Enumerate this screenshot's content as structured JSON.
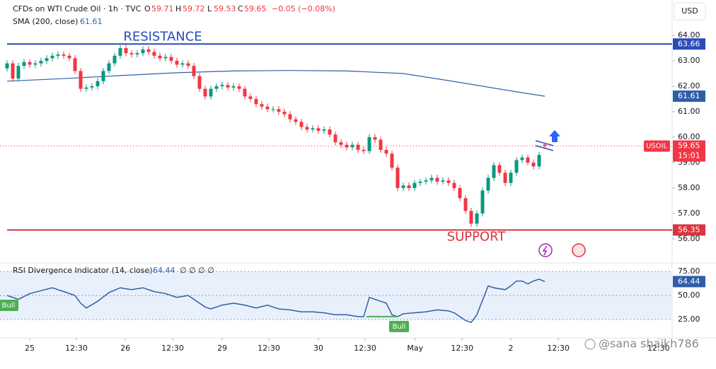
{
  "chart_data": {
    "type": "candlestick",
    "header": {
      "symbol": "CFDs on WTI Crude Oil · 1h · TVC",
      "o": "O",
      "h": "H",
      "l": "L",
      "c": "C",
      "change": "−0.05 (−0.08%)"
    },
    "currency": "USD",
    "up_color": "#089981",
    "down_color": "#f23645",
    "candles": [
      [
        62.7,
        63.02,
        62.58,
        62.9
      ],
      [
        62.9,
        63.02,
        62.18,
        62.3
      ],
      [
        62.3,
        62.92,
        62.18,
        62.8
      ],
      [
        62.8,
        63.07,
        62.68,
        62.95
      ],
      [
        62.95,
        63.07,
        62.73,
        62.85
      ],
      [
        62.85,
        63.02,
        62.73,
        62.9
      ],
      [
        62.9,
        63.12,
        62.78,
        63.0
      ],
      [
        63.0,
        63.22,
        62.88,
        63.1
      ],
      [
        63.1,
        63.32,
        62.98,
        63.2
      ],
      [
        63.2,
        63.37,
        63.08,
        63.25
      ],
      [
        63.25,
        63.37,
        63.08,
        63.2
      ],
      [
        63.2,
        63.32,
        62.98,
        63.1
      ],
      [
        63.1,
        63.22,
        62.48,
        62.6
      ],
      [
        62.6,
        62.72,
        61.78,
        61.9
      ],
      [
        61.9,
        62.07,
        61.78,
        61.95
      ],
      [
        61.95,
        62.12,
        61.83,
        62.0
      ],
      [
        62.0,
        62.32,
        61.88,
        62.2
      ],
      [
        62.2,
        62.72,
        62.08,
        62.6
      ],
      [
        62.6,
        63.02,
        62.48,
        62.9
      ],
      [
        62.9,
        63.32,
        62.78,
        63.2
      ],
      [
        63.2,
        63.62,
        63.08,
        63.5
      ],
      [
        63.5,
        63.62,
        63.18,
        63.3
      ],
      [
        63.3,
        63.42,
        63.13,
        63.25
      ],
      [
        63.25,
        63.42,
        63.13,
        63.3
      ],
      [
        63.3,
        63.57,
        63.18,
        63.45
      ],
      [
        63.45,
        63.57,
        63.23,
        63.35
      ],
      [
        63.35,
        63.47,
        63.08,
        63.2
      ],
      [
        63.2,
        63.32,
        62.98,
        63.1
      ],
      [
        63.1,
        63.27,
        62.98,
        63.15
      ],
      [
        63.15,
        63.27,
        62.88,
        63.0
      ],
      [
        63.0,
        63.12,
        62.73,
        62.85
      ],
      [
        62.85,
        63.02,
        62.73,
        62.9
      ],
      [
        62.9,
        63.02,
        62.68,
        62.8
      ],
      [
        62.8,
        62.92,
        62.28,
        62.4
      ],
      [
        62.4,
        62.52,
        61.78,
        61.9
      ],
      [
        61.9,
        62.02,
        61.48,
        61.6
      ],
      [
        61.6,
        62.02,
        61.48,
        61.9
      ],
      [
        61.9,
        62.12,
        61.78,
        62.0
      ],
      [
        62.0,
        62.17,
        61.88,
        62.05
      ],
      [
        62.05,
        62.17,
        61.83,
        61.95
      ],
      [
        61.95,
        62.12,
        61.83,
        62.0
      ],
      [
        62.0,
        62.12,
        61.78,
        61.9
      ],
      [
        61.9,
        62.02,
        61.48,
        61.6
      ],
      [
        61.6,
        61.72,
        61.38,
        61.5
      ],
      [
        61.5,
        61.62,
        61.18,
        61.3
      ],
      [
        61.3,
        61.42,
        61.08,
        61.2
      ],
      [
        61.2,
        61.32,
        60.98,
        61.1
      ],
      [
        61.1,
        61.22,
        60.98,
        61.1
      ],
      [
        61.1,
        61.22,
        60.88,
        61.0
      ],
      [
        61.0,
        61.12,
        60.78,
        60.9
      ],
      [
        60.9,
        61.02,
        60.58,
        60.7
      ],
      [
        60.7,
        60.82,
        60.48,
        60.6
      ],
      [
        60.6,
        60.72,
        60.28,
        60.4
      ],
      [
        60.4,
        60.52,
        60.18,
        60.3
      ],
      [
        60.3,
        60.47,
        60.18,
        60.35
      ],
      [
        60.35,
        60.47,
        60.13,
        60.25
      ],
      [
        60.25,
        60.42,
        60.13,
        60.3
      ],
      [
        60.3,
        60.42,
        59.98,
        60.1
      ],
      [
        60.1,
        60.22,
        59.68,
        59.8
      ],
      [
        59.8,
        59.92,
        59.58,
        59.7
      ],
      [
        59.7,
        59.82,
        59.48,
        59.6
      ],
      [
        59.6,
        59.82,
        59.48,
        59.7
      ],
      [
        59.7,
        59.82,
        59.38,
        59.5
      ],
      [
        59.5,
        59.62,
        59.33,
        59.45
      ],
      [
        59.45,
        60.12,
        59.33,
        60.0
      ],
      [
        60.0,
        60.12,
        59.78,
        59.9
      ],
      [
        59.9,
        60.02,
        59.38,
        59.5
      ],
      [
        59.5,
        59.62,
        59.23,
        59.35
      ],
      [
        59.35,
        59.47,
        58.68,
        58.8
      ],
      [
        58.8,
        58.92,
        57.88,
        58.0
      ],
      [
        58.0,
        58.22,
        57.88,
        58.1
      ],
      [
        58.1,
        58.22,
        57.88,
        58.0
      ],
      [
        58.0,
        58.32,
        57.88,
        58.2
      ],
      [
        58.2,
        58.37,
        58.08,
        58.25
      ],
      [
        58.25,
        58.42,
        58.13,
        58.3
      ],
      [
        58.3,
        58.52,
        58.18,
        58.4
      ],
      [
        58.4,
        58.52,
        58.13,
        58.25
      ],
      [
        58.25,
        58.42,
        58.13,
        58.3
      ],
      [
        58.3,
        58.42,
        58.08,
        58.2
      ],
      [
        58.2,
        58.32,
        57.88,
        58.0
      ],
      [
        58.0,
        58.12,
        57.48,
        57.6
      ],
      [
        57.6,
        57.72,
        56.98,
        57.1
      ],
      [
        57.1,
        57.22,
        56.48,
        56.6
      ],
      [
        56.6,
        57.12,
        56.48,
        57.0
      ],
      [
        57.0,
        58.02,
        56.88,
        57.9
      ],
      [
        57.9,
        58.52,
        57.78,
        58.4
      ],
      [
        58.4,
        59.02,
        58.28,
        58.9
      ],
      [
        58.9,
        59.02,
        58.48,
        58.6
      ],
      [
        58.6,
        58.72,
        58.08,
        58.2
      ],
      [
        58.2,
        58.72,
        58.08,
        58.6
      ],
      [
        58.6,
        59.22,
        58.48,
        59.1
      ],
      [
        59.1,
        59.32,
        58.98,
        59.2
      ],
      [
        59.2,
        59.32,
        58.88,
        59.0
      ],
      [
        59.0,
        59.12,
        58.73,
        58.85
      ],
      [
        58.85,
        59.42,
        58.73,
        59.3
      ],
      [
        59.71,
        59.72,
        59.53,
        59.65
      ]
    ],
    "sma": {
      "name": "SMA (200, close)",
      "color": "#2f5ea8",
      "x": [
        0,
        10,
        20,
        30,
        40,
        50,
        60,
        70,
        80,
        90,
        95
      ],
      "values": [
        62.2,
        62.3,
        62.42,
        62.53,
        62.6,
        62.62,
        62.6,
        62.5,
        62.15,
        61.78,
        61.61
      ]
    },
    "price_tag": {
      "symbol": "USOIL",
      "countdown": "15:01",
      "color": "#f23645"
    },
    "levels": [
      {
        "name": "RESISTANCE",
        "value": 63.66,
        "color": "#2a4bb8"
      },
      {
        "name": "SUPPORT",
        "value": 56.35,
        "color": "#d9343f"
      }
    ],
    "xlim": [
      -1.25,
      117.5
    ],
    "ylim": [
      55.11,
      65.39
    ],
    "yticks": [
      {
        "value": 56,
        "label": "56.00"
      },
      {
        "value": 57,
        "label": "57.00"
      },
      {
        "value": 58,
        "label": "58.00"
      },
      {
        "value": 59,
        "label": "59.00"
      },
      {
        "value": 60,
        "label": "60.00"
      },
      {
        "value": 61,
        "label": "61.00"
      },
      {
        "value": 62,
        "label": "62.00"
      },
      {
        "value": 63,
        "label": "63.00"
      },
      {
        "value": 64,
        "label": "64.00"
      }
    ],
    "xticks": [
      {
        "value": 4,
        "label": "25"
      },
      {
        "value": 12.25,
        "label": "12:30"
      },
      {
        "value": 20.9,
        "label": "26"
      },
      {
        "value": 29.25,
        "label": "12:30"
      },
      {
        "value": 38,
        "label": "29"
      },
      {
        "value": 46.25,
        "label": "12:30"
      },
      {
        "value": 55,
        "label": "30"
      },
      {
        "value": 63.25,
        "label": "12:30"
      },
      {
        "value": 72.1,
        "label": "May"
      },
      {
        "value": 80.4,
        "label": "12:30"
      },
      {
        "value": 89,
        "label": "2"
      },
      {
        "value": 97.4,
        "label": "12:30"
      },
      {
        "value": 115.1,
        "label": "12:30"
      }
    ],
    "rsi": {
      "name": "RSI Divergence Indicator (14, close)",
      "extra": "∅ ∅ ∅ ∅",
      "color": "#2f5ea8",
      "x": [
        0,
        2,
        4,
        6,
        8,
        10,
        12,
        13,
        14,
        16,
        18,
        20,
        22,
        24,
        26,
        28,
        30,
        32,
        34,
        35,
        36,
        38,
        40,
        42,
        44,
        46,
        48,
        50,
        52,
        54,
        56,
        58,
        60,
        62,
        63,
        64,
        66,
        67,
        68,
        69,
        70,
        72,
        74,
        76,
        78,
        79,
        80,
        81,
        82,
        83,
        84,
        85,
        86,
        88,
        89,
        90,
        91,
        92,
        93,
        94,
        95
      ],
      "values": [
        50,
        46,
        52,
        55,
        58,
        54,
        50,
        42,
        37,
        44,
        53,
        58,
        56,
        58,
        54,
        52,
        48,
        50,
        42,
        38,
        36,
        40,
        42,
        40,
        37,
        40,
        36,
        35,
        33,
        33,
        32,
        30,
        30,
        28,
        28,
        48,
        44,
        42,
        30,
        28,
        31,
        32,
        33,
        35,
        34,
        32,
        28,
        24,
        22,
        30,
        45,
        60,
        58,
        56,
        60,
        65,
        65,
        62,
        65,
        67,
        64.44
      ],
      "ylim": [
        5.9,
        83.8
      ],
      "yticks": [
        {
          "value": 25,
          "label": "25.00"
        },
        {
          "value": 50,
          "label": "50.00"
        },
        {
          "value": 75,
          "label": "75.00"
        }
      ],
      "annotations": [
        {
          "text": "Bull",
          "x": 0
        },
        {
          "text": "Bull",
          "x": 69
        }
      ]
    },
    "watermark": "@sana shaikh786"
  }
}
